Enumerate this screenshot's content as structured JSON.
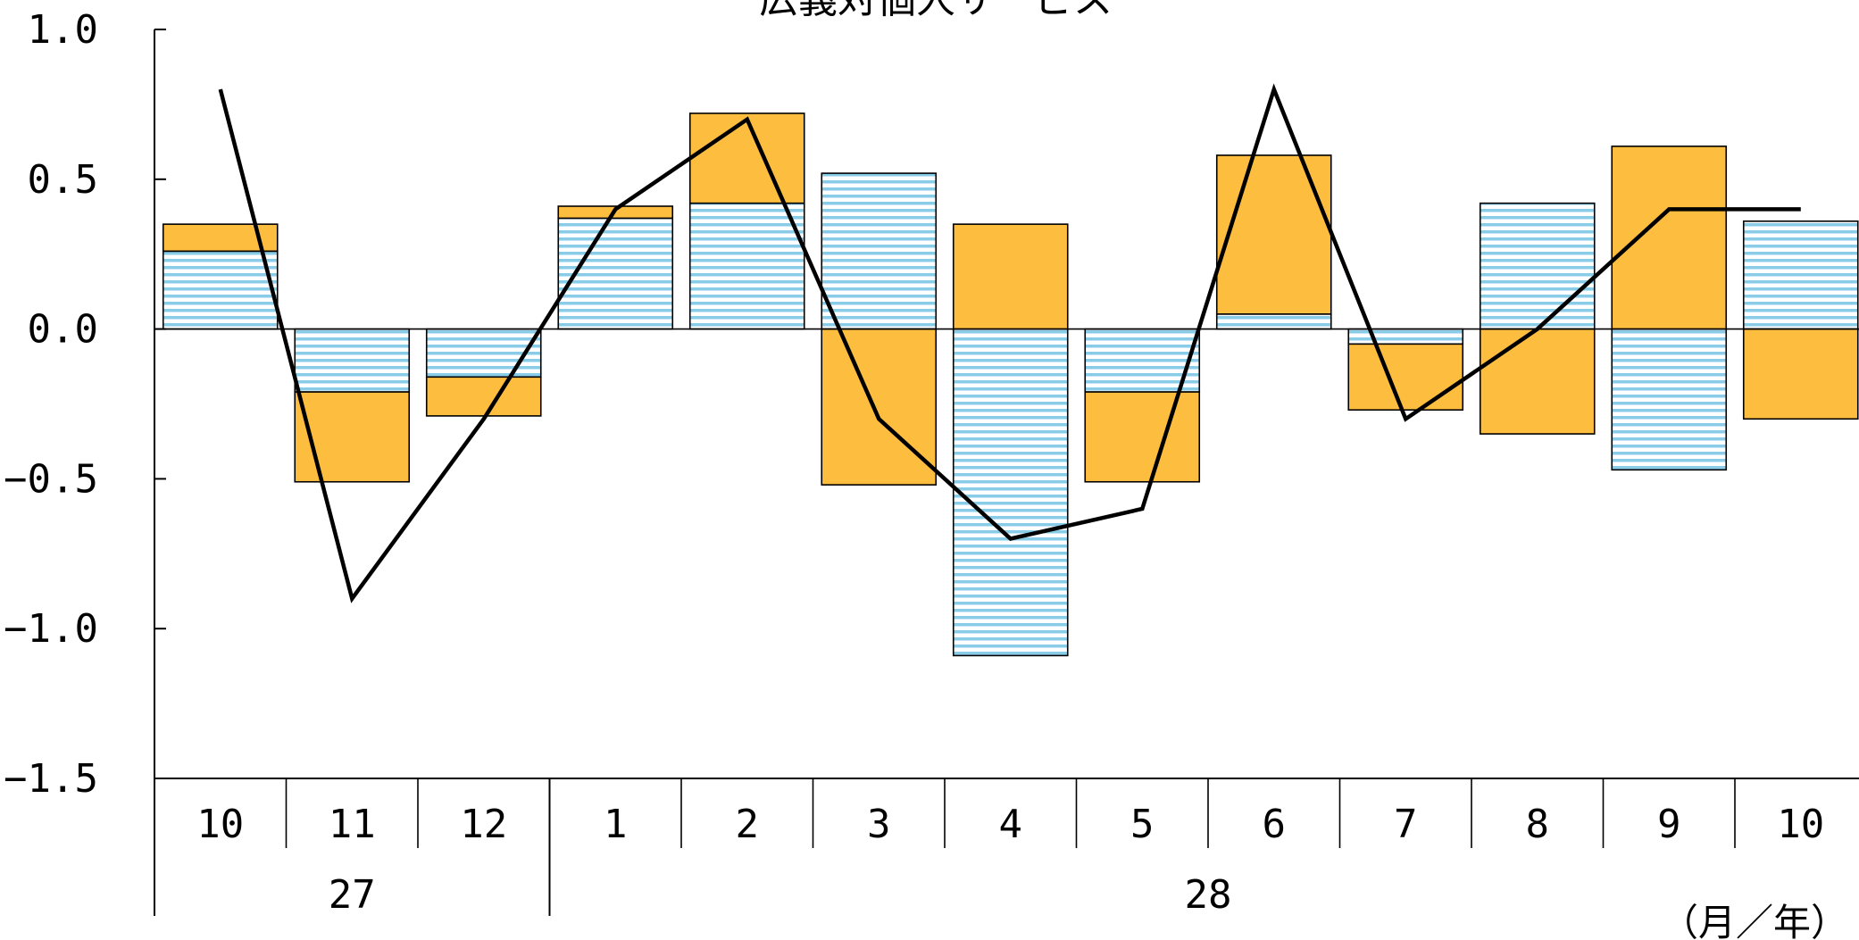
{
  "chart_data": {
    "type": "bar",
    "title": "ー広義対個人サービス",
    "x_unit_label": "（月／年）",
    "y_ticks": [
      "1.0",
      "0.5",
      "0.0",
      "−0.5",
      "−1.0",
      "−1.5"
    ],
    "ylim": [
      -1.5,
      1.0
    ],
    "categories": [
      "10",
      "11",
      "12",
      "1",
      "2",
      "3",
      "4",
      "5",
      "6",
      "7",
      "8",
      "9",
      "10"
    ],
    "year_groups": [
      {
        "label": "27",
        "months": 3
      },
      {
        "label": "28",
        "months": 10
      }
    ],
    "stacked": true,
    "series": [
      {
        "kind": "bar",
        "pattern": "horizontal-stripes",
        "color": "#88cce8",
        "values": [
          0.26,
          -0.21,
          -0.16,
          0.37,
          0.42,
          0.52,
          -1.09,
          -0.21,
          0.05,
          -0.05,
          0.42,
          -0.47,
          0.36
        ]
      },
      {
        "kind": "bar",
        "pattern": "solid",
        "color": "#fdbd3f",
        "values": [
          0.09,
          -0.3,
          -0.13,
          0.04,
          0.3,
          -0.52,
          0.35,
          -0.3,
          0.53,
          -0.22,
          -0.35,
          0.61,
          -0.3
        ]
      },
      {
        "kind": "line",
        "color": "#000000",
        "values": [
          0.8,
          -0.9,
          -0.3,
          0.4,
          0.7,
          -0.3,
          -0.7,
          -0.6,
          0.8,
          -0.3,
          0.0,
          0.4,
          0.4
        ]
      }
    ],
    "grid": false,
    "legend": "none"
  }
}
